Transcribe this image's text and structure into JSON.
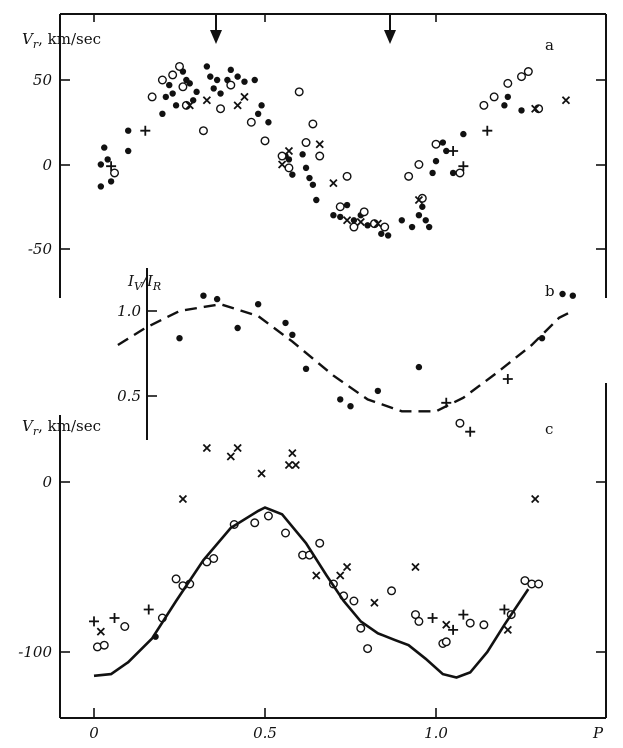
{
  "chart_data": [
    {
      "panel": "a",
      "type": "scatter",
      "ylabel": "V_r, km/sec",
      "yticks": [
        "50",
        "0",
        "-50"
      ],
      "ylim": [
        -78,
        92
      ],
      "xlim": [
        -0.08,
        1.42
      ],
      "arrows_at_phase": [
        0.35,
        0.86
      ],
      "series": [
        {
          "marker": "dot",
          "points": [
            [
              0.02,
              0
            ],
            [
              0.03,
              10
            ],
            [
              0.04,
              3
            ],
            [
              0.02,
              -13
            ],
            [
              0.05,
              -10
            ],
            [
              0.1,
              20
            ],
            [
              0.1,
              8
            ],
            [
              0.2,
              30
            ],
            [
              0.21,
              40
            ],
            [
              0.22,
              47
            ],
            [
              0.23,
              42
            ],
            [
              0.24,
              35
            ],
            [
              0.26,
              55
            ],
            [
              0.27,
              50
            ],
            [
              0.28,
              48
            ],
            [
              0.29,
              38
            ],
            [
              0.3,
              43
            ],
            [
              0.33,
              58
            ],
            [
              0.34,
              52
            ],
            [
              0.35,
              45
            ],
            [
              0.36,
              50
            ],
            [
              0.37,
              42
            ],
            [
              0.39,
              50
            ],
            [
              0.4,
              56
            ],
            [
              0.42,
              52
            ],
            [
              0.44,
              49
            ],
            [
              0.47,
              50
            ],
            [
              0.48,
              30
            ],
            [
              0.49,
              35
            ],
            [
              0.51,
              25
            ],
            [
              0.56,
              5
            ],
            [
              0.57,
              3
            ],
            [
              0.58,
              -6
            ],
            [
              0.61,
              6
            ],
            [
              0.62,
              -2
            ],
            [
              0.63,
              -8
            ],
            [
              0.64,
              -12
            ],
            [
              0.65,
              -21
            ],
            [
              0.7,
              -30
            ],
            [
              0.72,
              -31
            ],
            [
              0.74,
              -24
            ],
            [
              0.76,
              -33
            ],
            [
              0.78,
              -30
            ],
            [
              0.8,
              -36
            ],
            [
              0.84,
              -41
            ],
            [
              0.86,
              -42
            ],
            [
              0.9,
              -33
            ],
            [
              0.93,
              -37
            ],
            [
              0.95,
              -30
            ],
            [
              0.96,
              -25
            ],
            [
              0.97,
              -33
            ],
            [
              0.98,
              -37
            ],
            [
              0.99,
              -5
            ],
            [
              1.0,
              2
            ],
            [
              1.02,
              13
            ],
            [
              1.03,
              8
            ],
            [
              1.05,
              -5
            ],
            [
              1.08,
              18
            ],
            [
              1.2,
              35
            ],
            [
              1.21,
              40
            ],
            [
              1.25,
              32
            ]
          ]
        },
        {
          "marker": "open-circle",
          "points": [
            [
              0.06,
              -5
            ],
            [
              0.17,
              40
            ],
            [
              0.2,
              50
            ],
            [
              0.23,
              53
            ],
            [
              0.25,
              58
            ],
            [
              0.26,
              46
            ],
            [
              0.27,
              35
            ],
            [
              0.32,
              20
            ],
            [
              0.37,
              33
            ],
            [
              0.4,
              47
            ],
            [
              0.46,
              25
            ],
            [
              0.5,
              14
            ],
            [
              0.55,
              5
            ],
            [
              0.57,
              -2
            ],
            [
              0.6,
              43
            ],
            [
              0.62,
              13
            ],
            [
              0.64,
              24
            ],
            [
              0.66,
              5
            ],
            [
              0.72,
              -25
            ],
            [
              0.74,
              -7
            ],
            [
              0.76,
              -37
            ],
            [
              0.79,
              -28
            ],
            [
              0.82,
              -35
            ],
            [
              0.85,
              -37
            ],
            [
              0.92,
              -7
            ],
            [
              0.95,
              0
            ],
            [
              0.96,
              -20
            ],
            [
              1.0,
              12
            ],
            [
              1.07,
              -5
            ],
            [
              1.14,
              35
            ],
            [
              1.17,
              40
            ],
            [
              1.21,
              48
            ],
            [
              1.25,
              52
            ],
            [
              1.27,
              55
            ],
            [
              1.3,
              33
            ]
          ]
        },
        {
          "marker": "cross",
          "points": [
            [
              0.28,
              35
            ],
            [
              0.33,
              38
            ],
            [
              0.42,
              35
            ],
            [
              0.44,
              40
            ],
            [
              0.55,
              0
            ],
            [
              0.57,
              8
            ],
            [
              0.66,
              12
            ],
            [
              0.7,
              -11
            ],
            [
              0.74,
              -33
            ],
            [
              0.78,
              -34
            ],
            [
              0.83,
              -35
            ],
            [
              0.95,
              -21
            ],
            [
              1.29,
              33
            ],
            [
              1.38,
              38
            ]
          ]
        },
        {
          "marker": "plus",
          "points": [
            [
              0.05,
              -1
            ],
            [
              0.15,
              20
            ],
            [
              1.05,
              8
            ],
            [
              1.08,
              -1
            ],
            [
              1.15,
              20
            ]
          ]
        }
      ]
    },
    {
      "panel": "b",
      "type": "scatter",
      "ylabel": "I_V / I_R",
      "yticks": [
        "1.0",
        "0.5"
      ],
      "ylim": [
        0.25,
        1.12
      ],
      "xlim": [
        -0.08,
        1.42
      ],
      "series": [
        {
          "marker": "dot",
          "points": [
            [
              0.25,
              0.84
            ],
            [
              0.32,
              1.09
            ],
            [
              0.36,
              1.07
            ],
            [
              0.42,
              0.9
            ],
            [
              0.48,
              1.04
            ],
            [
              0.56,
              0.93
            ],
            [
              0.58,
              0.86
            ],
            [
              0.62,
              0.66
            ],
            [
              0.72,
              0.48
            ],
            [
              0.75,
              0.44
            ],
            [
              0.83,
              0.53
            ],
            [
              0.95,
              0.67
            ],
            [
              1.31,
              0.84
            ],
            [
              1.37,
              1.1
            ],
            [
              1.4,
              1.09
            ]
          ]
        },
        {
          "marker": "plus",
          "points": [
            [
              1.03,
              0.46
            ],
            [
              1.1,
              0.29
            ],
            [
              1.21,
              0.6
            ]
          ]
        },
        {
          "marker": "open-circle",
          "points": [
            [
              1.07,
              0.34
            ]
          ]
        },
        {
          "line": "dashed",
          "name": "",
          "points": [
            [
              0.07,
              0.8
            ],
            [
              0.15,
              0.9
            ],
            [
              0.25,
              1.0
            ],
            [
              0.37,
              1.04
            ],
            [
              0.48,
              0.97
            ],
            [
              0.58,
              0.82
            ],
            [
              0.7,
              0.62
            ],
            [
              0.8,
              0.48
            ],
            [
              0.9,
              0.41
            ],
            [
              1.0,
              0.41
            ],
            [
              1.08,
              0.49
            ],
            [
              1.18,
              0.64
            ],
            [
              1.28,
              0.8
            ],
            [
              1.36,
              0.96
            ],
            [
              1.4,
              1.0
            ]
          ]
        }
      ]
    },
    {
      "panel": "c",
      "type": "scatter",
      "ylabel": "V_r, km/sec",
      "yticks": [
        "0",
        "-100"
      ],
      "ylim": [
        -140,
        35
      ],
      "xlim": [
        -0.08,
        1.42
      ],
      "xticks": [
        "0",
        "0.5",
        "1.0"
      ],
      "xlabel": "P",
      "series": [
        {
          "marker": "open-circle",
          "points": [
            [
              0.01,
              -97
            ],
            [
              0.03,
              -96
            ],
            [
              0.09,
              -85
            ],
            [
              0.2,
              -80
            ],
            [
              0.24,
              -57
            ],
            [
              0.26,
              -61
            ],
            [
              0.28,
              -60
            ],
            [
              0.33,
              -47
            ],
            [
              0.35,
              -45
            ],
            [
              0.41,
              -25
            ],
            [
              0.47,
              -24
            ],
            [
              0.51,
              -20
            ],
            [
              0.56,
              -30
            ],
            [
              0.61,
              -43
            ],
            [
              0.63,
              -43
            ],
            [
              0.66,
              -36
            ],
            [
              0.7,
              -60
            ],
            [
              0.73,
              -67
            ],
            [
              0.76,
              -70
            ],
            [
              0.78,
              -86
            ],
            [
              0.8,
              -98
            ],
            [
              0.87,
              -64
            ],
            [
              0.94,
              -78
            ],
            [
              0.95,
              -82
            ],
            [
              1.02,
              -95
            ],
            [
              1.03,
              -94
            ],
            [
              1.1,
              -83
            ],
            [
              1.14,
              -84
            ],
            [
              1.22,
              -78
            ],
            [
              1.26,
              -58
            ],
            [
              1.28,
              -60
            ],
            [
              1.3,
              -60
            ]
          ]
        },
        {
          "marker": "cross",
          "points": [
            [
              0.02,
              -88
            ],
            [
              0.26,
              -10
            ],
            [
              0.33,
              20
            ],
            [
              0.4,
              15
            ],
            [
              0.42,
              20
            ],
            [
              0.49,
              5
            ],
            [
              0.57,
              10
            ],
            [
              0.58,
              17
            ],
            [
              0.59,
              10
            ],
            [
              0.65,
              -55
            ],
            [
              0.72,
              -55
            ],
            [
              0.74,
              -50
            ],
            [
              0.82,
              -71
            ],
            [
              0.94,
              -50
            ],
            [
              1.03,
              -84
            ],
            [
              1.21,
              -87
            ],
            [
              1.29,
              -10
            ]
          ]
        },
        {
          "marker": "plus",
          "points": [
            [
              0.0,
              -82
            ],
            [
              0.06,
              -80
            ],
            [
              0.16,
              -75
            ],
            [
              0.99,
              -80
            ],
            [
              1.05,
              -87
            ],
            [
              1.08,
              -78
            ],
            [
              1.2,
              -75
            ]
          ]
        },
        {
          "marker": "dot",
          "points": [
            [
              0.18,
              -91
            ]
          ]
        },
        {
          "line": "solid",
          "name": "",
          "points": [
            [
              0.0,
              -114
            ],
            [
              0.05,
              -113
            ],
            [
              0.1,
              -106
            ],
            [
              0.17,
              -92
            ],
            [
              0.24,
              -70
            ],
            [
              0.32,
              -46
            ],
            [
              0.4,
              -27
            ],
            [
              0.48,
              -17
            ],
            [
              0.5,
              -15
            ],
            [
              0.55,
              -19
            ],
            [
              0.62,
              -36
            ],
            [
              0.68,
              -55
            ],
            [
              0.73,
              -70
            ],
            [
              0.78,
              -82
            ],
            [
              0.83,
              -89
            ],
            [
              0.88,
              -93
            ],
            [
              0.92,
              -96
            ],
            [
              0.97,
              -104
            ],
            [
              1.02,
              -113
            ],
            [
              1.06,
              -115
            ],
            [
              1.1,
              -112
            ],
            [
              1.15,
              -100
            ],
            [
              1.2,
              -84
            ],
            [
              1.27,
              -63
            ]
          ]
        }
      ]
    }
  ],
  "labels": {
    "a_ylabel_main": "V",
    "a_ylabel_sub": "r",
    "a_ylabel_units": ", km/sec",
    "b_ylabel_num": "I",
    "b_ylabel_num_sub": "V",
    "b_ylabel_den": "/I",
    "b_ylabel_den_sub": "R",
    "c_ylabel_main": "V",
    "c_ylabel_sub": "r",
    "c_ylabel_units": ", km/sec",
    "panel_a": "a",
    "panel_b": "b",
    "panel_c": "c",
    "a_tick_50": "50",
    "a_tick_0": "0",
    "a_tick_m50": "-50",
    "b_tick_10": "1.0",
    "b_tick_05": "0.5",
    "c_tick_0": "0",
    "c_tick_m100": "-100",
    "x_tick_0": "0",
    "x_tick_05": "0.5",
    "x_tick_10": "1.0",
    "xlabel": "P"
  }
}
